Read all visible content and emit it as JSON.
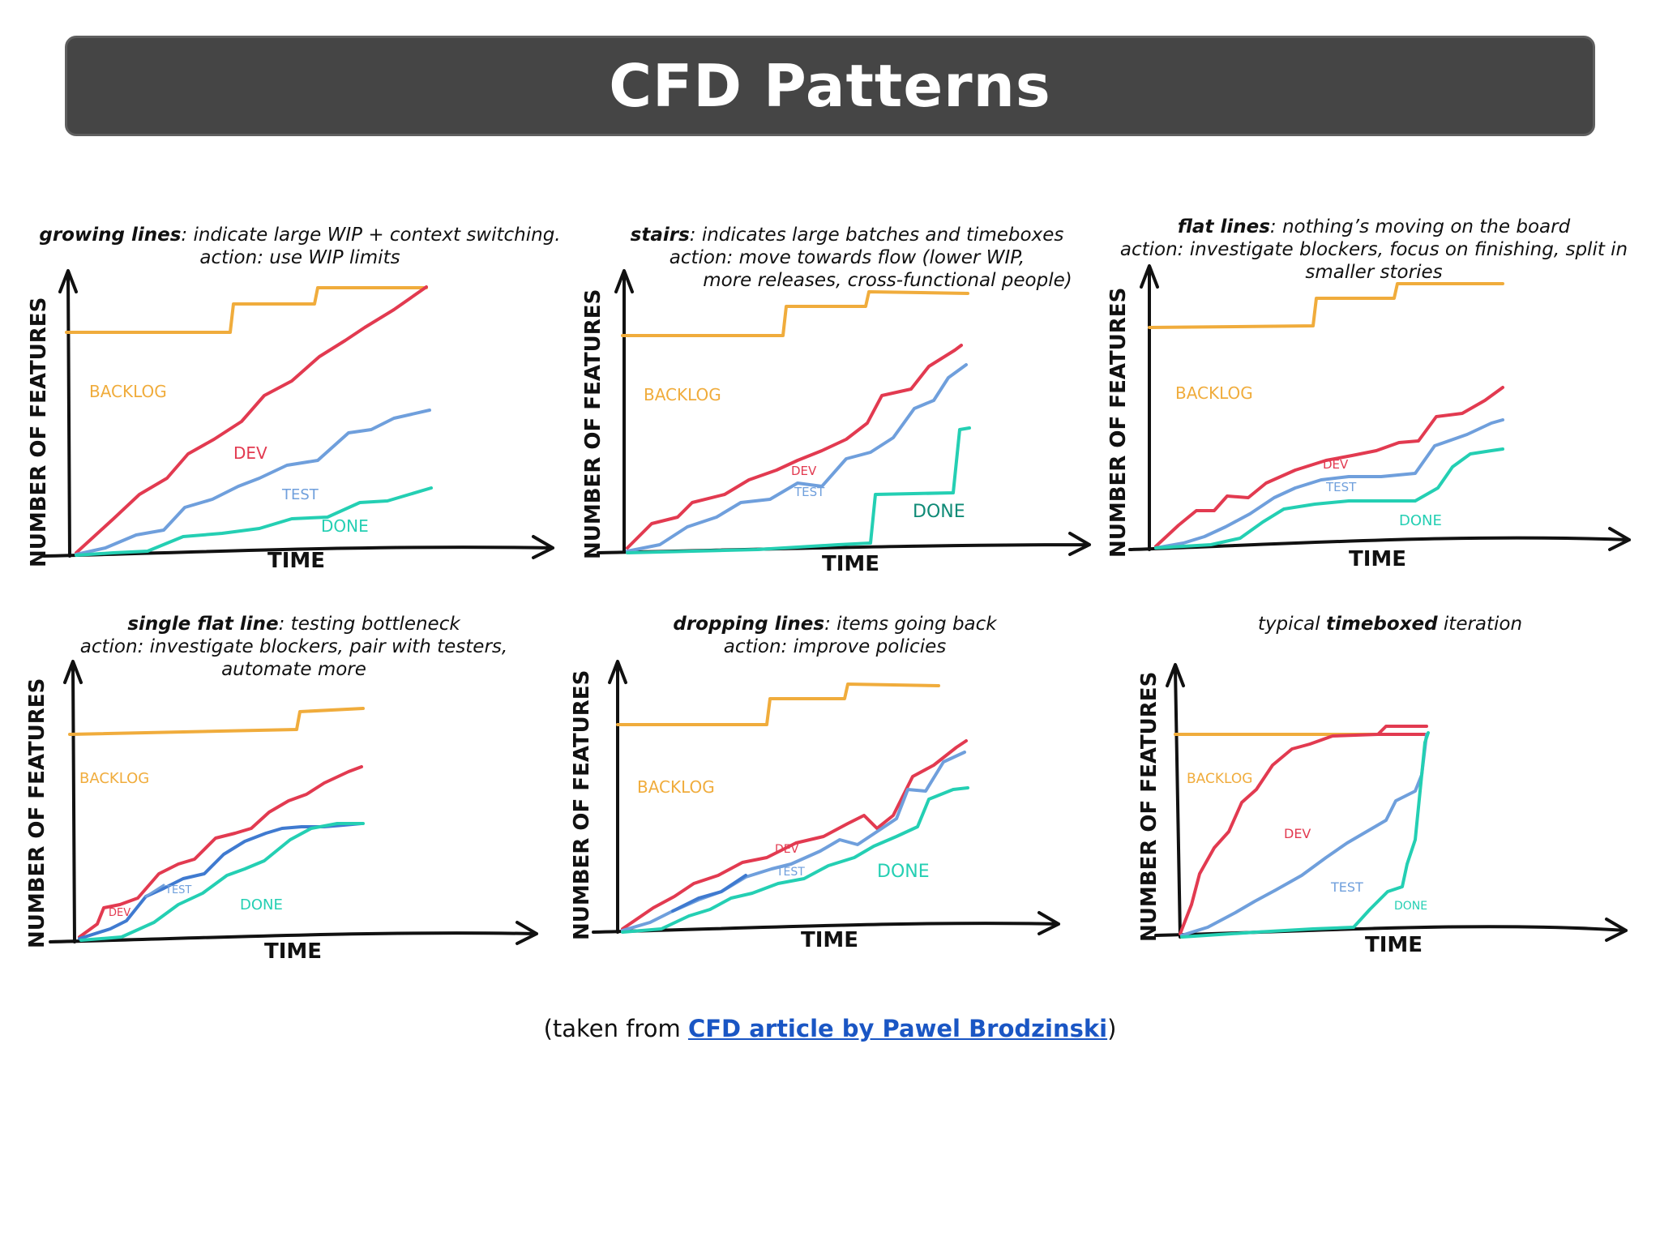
{
  "title": "CFD Patterns",
  "colors": {
    "backlog": "#f0ac3c",
    "dev": "#e23a50",
    "test": "#6f9fdc",
    "done": "#24cfb3",
    "axis": "#111111",
    "link": "#1a56c4"
  },
  "axis_labels": {
    "y": "NUMBER OF FEATURES",
    "x": "TIME"
  },
  "band_labels": {
    "backlog": "BACKLOG",
    "dev": "DEV",
    "test": "TEST",
    "done": "DONE"
  },
  "panels": [
    {
      "caption": {
        "bold": "growing lines",
        "rest": ": indicate large WIP + context switching.",
        "line2": "action: use WIP limits",
        "line3": ""
      }
    },
    {
      "caption": {
        "bold": "stairs",
        "rest": ": indicates large batches and timeboxes",
        "line2": "action: move towards flow (lower WIP,",
        "line3": "more releases, cross-functional people)"
      }
    },
    {
      "caption": {
        "bold": "flat lines",
        "rest": ": nothing’s moving on the board",
        "line2": "action: investigate blockers, focus on finishing, split in",
        "line3": "smaller stories"
      }
    },
    {
      "caption": {
        "bold": "single flat line",
        "rest": ": testing bottleneck",
        "line2": "action: investigate blockers, pair with testers,",
        "line3": "automate more"
      }
    },
    {
      "caption": {
        "bold": "dropping lines",
        "rest": ": items going back",
        "line2": "action: improve policies",
        "line3": ""
      }
    },
    {
      "caption": {
        "pre": "typical ",
        "bold": "timeboxed",
        "rest": " iteration",
        "line2": "",
        "line3": ""
      }
    }
  ],
  "source": {
    "prefix": "(taken from ",
    "link_text": "CFD article by Pawel Brodzinski",
    "suffix": ")"
  }
}
